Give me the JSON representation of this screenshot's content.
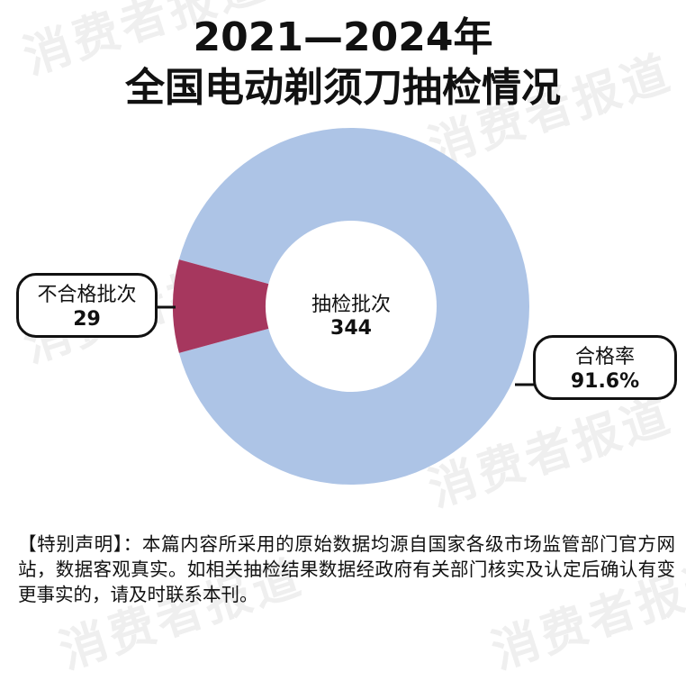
{
  "title": {
    "line1": "2021—2024年",
    "line2": "全国电动剃须刀抽检情况"
  },
  "watermark": "消费者报道",
  "center": {
    "label": "抽检批次",
    "value": "344"
  },
  "colors": {
    "pass": "#adc4e6",
    "fail": "#a6375e",
    "hole": "#ffffff",
    "stroke": "#111111"
  },
  "chart_data": {
    "type": "pie",
    "donut": true,
    "total_label": "抽检批次",
    "total": 344,
    "slices": [
      {
        "name": "合格率",
        "value": 315,
        "label": "91.6%"
      },
      {
        "name": "不合格批次",
        "value": 29,
        "label": "29"
      }
    ]
  },
  "callouts": {
    "fail": {
      "label": "不合格批次",
      "value": "29"
    },
    "pass": {
      "label": "合格率",
      "value": "91.6%"
    }
  },
  "notice": "【特别声明】：本篇内容所采用的原始数据均源自国家各级市场监管部门官方网站，数据客观真实。如相关抽检结果数据经政府有关部门核实及认定后确认有变更事实的，请及时联系本刊。"
}
